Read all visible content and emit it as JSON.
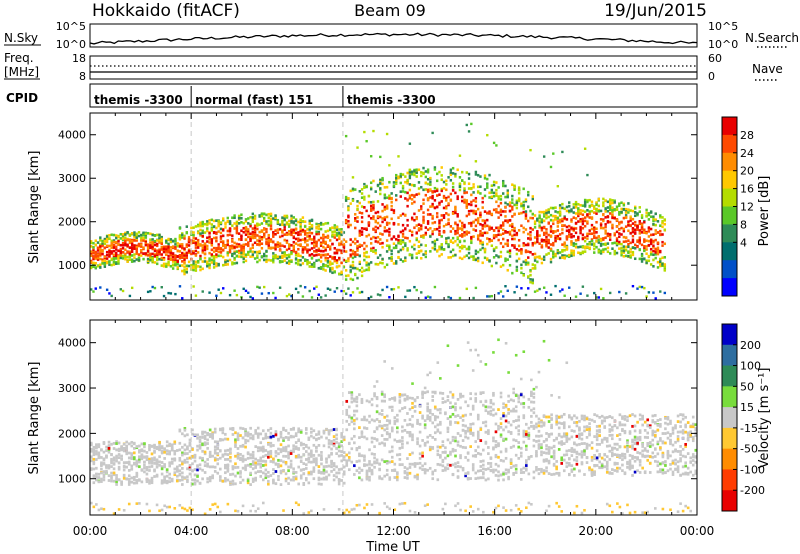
{
  "header": {
    "station": "Hokkaido (fitACF)",
    "beam": "Beam 09",
    "date": "19/Jun/2015"
  },
  "noise_panel": {
    "left_label": "N.Sky",
    "right_label": "N.Search",
    "left_ticks": [
      "10^5",
      "10^0"
    ],
    "right_ticks": [
      "10^5",
      "10^0"
    ]
  },
  "freq_panel": {
    "left_label_1": "Freq.",
    "left_label_2": "[MHz]",
    "right_label": "Nave",
    "left_ticks": [
      "18",
      "8"
    ],
    "right_ticks": [
      "60",
      "0"
    ]
  },
  "cpid_panel": {
    "label": "CPID",
    "segments": [
      {
        "start_hour": 0,
        "end_hour": 4,
        "text": "themis -3300"
      },
      {
        "start_hour": 4,
        "end_hour": 10,
        "text": "normal (fast) 151"
      },
      {
        "start_hour": 10,
        "end_hour": 24,
        "text": "themis -3300"
      }
    ]
  },
  "chart_data": [
    {
      "type": "heatmap",
      "title": "",
      "xlabel": "Time UT",
      "ylabel": "Slant Range [km]",
      "xlim": [
        0,
        24
      ],
      "ylim": [
        200,
        4500
      ],
      "x_ticks": [
        "00:00",
        "04:00",
        "08:00",
        "12:00",
        "16:00",
        "20:00",
        "00:00"
      ],
      "y_ticks": [
        1000,
        2000,
        3000,
        4000
      ],
      "colorbar": {
        "label": "Power [dB]",
        "ticks": [
          "28",
          "24",
          "20",
          "16",
          "12",
          "8",
          "4"
        ],
        "colors": [
          "#e80000",
          "#ff4a00",
          "#ff8c00",
          "#ffc800",
          "#b4dc00",
          "#5ac828",
          "#2e8b57",
          "#006e6e",
          "#0050c8",
          "#0000ff"
        ]
      },
      "echo_bands": [
        {
          "t_start": 0.0,
          "t_end": 3.5,
          "range_low": 1100,
          "range_high": 1600
        },
        {
          "t_start": 3.5,
          "t_end": 10.0,
          "range_low": 1100,
          "range_high": 1900
        },
        {
          "t_start": 10.0,
          "t_end": 17.5,
          "range_low": 1200,
          "range_high": 2700
        },
        {
          "t_start": 17.5,
          "t_end": 22.5,
          "range_low": 1300,
          "range_high": 2200
        }
      ]
    },
    {
      "type": "heatmap",
      "title": "",
      "xlabel": "Time UT",
      "ylabel": "Slant Range [km]",
      "xlim": [
        0,
        24
      ],
      "ylim": [
        200,
        4500
      ],
      "x_ticks": [
        "00:00",
        "04:00",
        "08:00",
        "12:00",
        "16:00",
        "20:00",
        "00:00"
      ],
      "y_ticks": [
        1000,
        2000,
        3000,
        4000
      ],
      "colorbar": {
        "label": "Velocity [m s⁻¹]",
        "ticks": [
          "200",
          "100",
          "50",
          "15",
          "-15",
          "-50",
          "-100",
          "-200"
        ],
        "colors": [
          "#0000c8",
          "#2e6ea0",
          "#2e8b57",
          "#78dc3c",
          "#c8c8c8",
          "#ffc832",
          "#ff8c00",
          "#ff3c00",
          "#e80000"
        ]
      }
    }
  ]
}
